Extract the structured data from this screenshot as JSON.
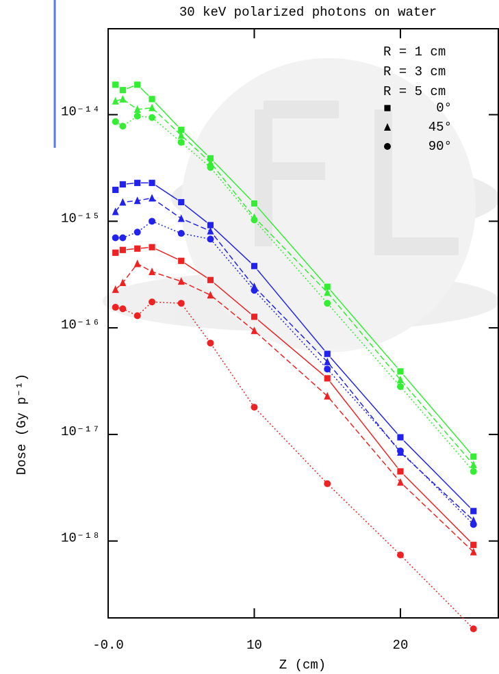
{
  "chart_data": {
    "type": "line",
    "title": "30 keV polarized photons on water",
    "x_label": "Z (cm)",
    "y_label": "Dose (Gy p⁻¹)",
    "log_y": true,
    "x": [
      0.5,
      1,
      2,
      3,
      5,
      7,
      10,
      15,
      20,
      25
    ],
    "xlim": [
      0,
      26.7
    ],
    "xticks": [
      {
        "value": 0,
        "label": "-0.0"
      },
      10,
      20
    ],
    "ylim": [
      1.9e-19,
      6.4e-14
    ],
    "yticks": [
      {
        "value": 1e-14,
        "label": "10⁻¹⁴"
      },
      {
        "value": 1e-15,
        "label": "10⁻¹⁵"
      },
      {
        "value": 1e-16,
        "label": "10⁻¹⁶"
      },
      {
        "value": 1e-17,
        "label": "10⁻¹⁷"
      },
      {
        "value": 1e-18,
        "label": "10⁻¹⁸"
      }
    ],
    "angles": [
      {
        "name": "0°",
        "marker": "square",
        "line": "solid"
      },
      {
        "name": "45°",
        "marker": "triangle",
        "line": "dashed"
      },
      {
        "name": "90°",
        "marker": "circle",
        "line": "dotted"
      }
    ],
    "radii": [
      {
        "name": "R = 1 cm",
        "color": "#33ee33",
        "series": [
          {
            "values": [
              1.91e-14,
              1.7e-14,
              1.91e-14,
              1.4e-14,
              7.2e-15,
              3.9e-15,
              1.47e-15,
              2.43e-16,
              3.9e-17,
              6.2e-18
            ]
          },
          {
            "values": [
              1.34e-14,
              1.4e-14,
              1.12e-14,
              1.16e-14,
              6.4e-15,
              3.56e-15,
              1.09e-15,
              2.15e-16,
              3.26e-17,
              5.2e-18
            ]
          },
          {
            "values": [
              8.6e-15,
              7.8e-15,
              9.7e-15,
              9.4e-15,
              5.5e-15,
              3.2e-15,
              1.03e-15,
              1.7e-16,
              2.81e-17,
              4.5e-18
            ]
          }
        ]
      },
      {
        "name": "R = 3 cm",
        "color": "#2222ee",
        "series": [
          {
            "values": [
              1.97e-15,
              2.22e-15,
              2.29e-15,
              2.29e-15,
              1.51e-15,
              9.2e-16,
              3.8e-16,
              5.7e-17,
              9.4e-18,
              1.91e-18
            ]
          },
          {
            "values": [
              1.23e-15,
              1.51e-15,
              1.56e-15,
              1.65e-15,
              1.06e-15,
              8.1e-16,
              2.43e-16,
              4.8e-17,
              6.8e-18,
              1.56e-18
            ]
          },
          {
            "values": [
              7e-16,
              7e-16,
              7.9e-16,
              1e-15,
              7.7e-16,
              6.8e-16,
              2.25e-16,
              4.1e-17,
              7e-18,
              1.43e-18
            ]
          }
        ]
      },
      {
        "name": "R = 5 cm",
        "color": "#ee2222",
        "series": [
          {
            "values": [
              5.07e-16,
              5.38e-16,
              5.54e-16,
              5.71e-16,
              4.25e-16,
              2.81e-16,
              1.27e-16,
              3.36e-17,
              4.5e-18,
              9.2e-19
            ]
          },
          {
            "values": [
              2.29e-16,
              2.65e-16,
              4e-16,
              3.36e-16,
              2.73e-16,
              2.03e-16,
              9.4e-17,
              2.29e-17,
              3.56e-18,
              7.9e-19
            ]
          },
          {
            "values": [
              1.56e-16,
              1.51e-16,
              1.3e-16,
              1.75e-16,
              1.7e-16,
              7.2e-17,
              1.8e-17,
              3.45e-18,
              7.4e-19,
              1.5e-19
            ]
          }
        ]
      }
    ]
  }
}
